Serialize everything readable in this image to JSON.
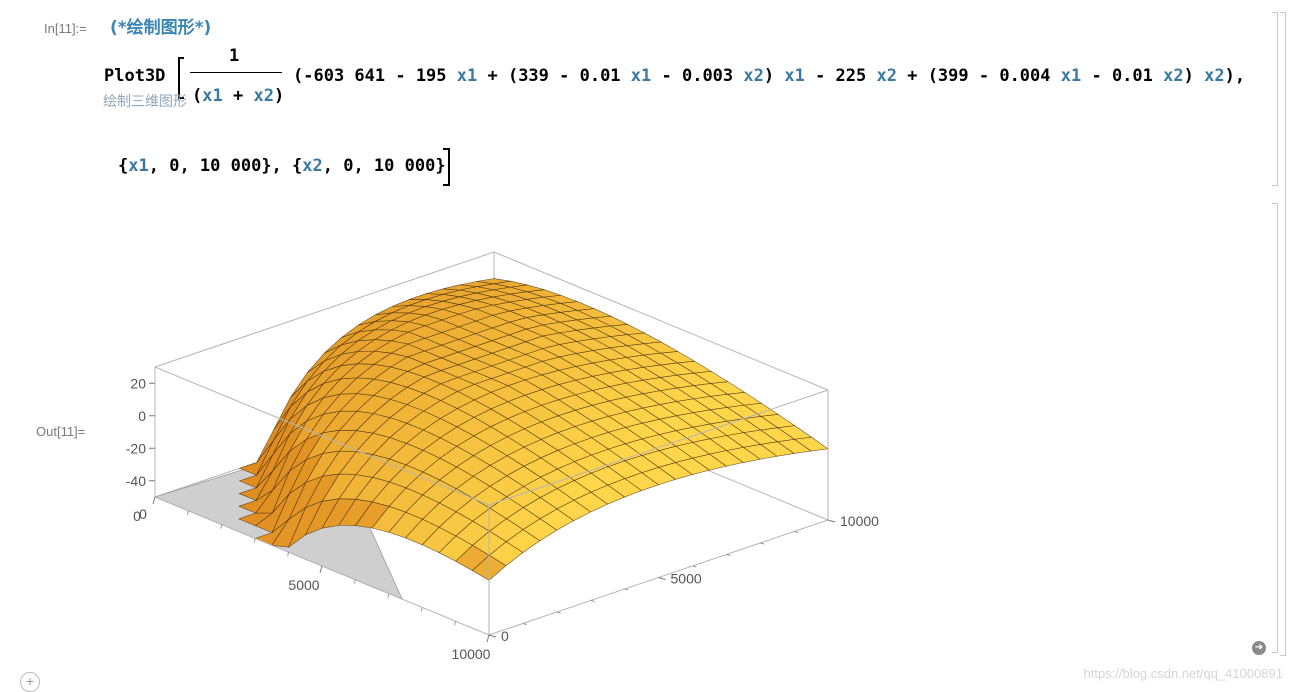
{
  "notebook": {
    "in_label": "In[11]:=",
    "out_label": "Out[11]=",
    "comment": "(*绘制图形*)",
    "input_hint": "绘制三维图形",
    "code": {
      "func": "Plot3D",
      "numerator": "1",
      "den_x1": "x1",
      "den_plus": " + ",
      "den_x2": "x2",
      "den_open": "(",
      "den_close": ")",
      "expr_p1": "(-603 641 - 195 ",
      "expr_x1a": "x1",
      "expr_p2": " + (339 - 0.01 ",
      "expr_x1b": "x1",
      "expr_p3": " - 0.003 ",
      "expr_x2a": "x2",
      "expr_p4": ") ",
      "expr_x1c": "x1",
      "expr_p5": " - 225 ",
      "expr_x2b": "x2",
      "expr_p6": " + (399 - 0.004 ",
      "expr_x1d": "x1",
      "expr_p7": " - 0.01 ",
      "expr_x2c": "x2",
      "expr_p8": ") ",
      "expr_x2d": "x2",
      "expr_p9": "),",
      "range_p1": "{",
      "range_x1": "x1",
      "range_p2": ", 0, 10 000}, {",
      "range_x2": "x2",
      "range_p3": ", 0, 10 000}"
    }
  },
  "chart_data": {
    "type": "surface3d",
    "function": "(1/(x1+x2)) (-603641 - 195 x1 + (339 - 0.01 x1 - 0.003 x2) x1 - 225 x2 + (399 - 0.004 x1 - 0.01 x2) x2)",
    "x1_range": [
      0,
      10000
    ],
    "x2_range": [
      0,
      10000
    ],
    "z_ticks": [
      "20",
      "0",
      "-20",
      "-40"
    ],
    "x1_ticks": [
      "0",
      "5000",
      "10000"
    ],
    "x2_ticks": [
      "0",
      "5000",
      "10000"
    ],
    "surface_color_light": "#ffd24a",
    "surface_color_dark": "#c4580c",
    "grid": true
  },
  "watermark": "https://blog.csdn.net/qq_41000891",
  "buttons": {
    "add_cell": "+",
    "arrow": "➜"
  }
}
